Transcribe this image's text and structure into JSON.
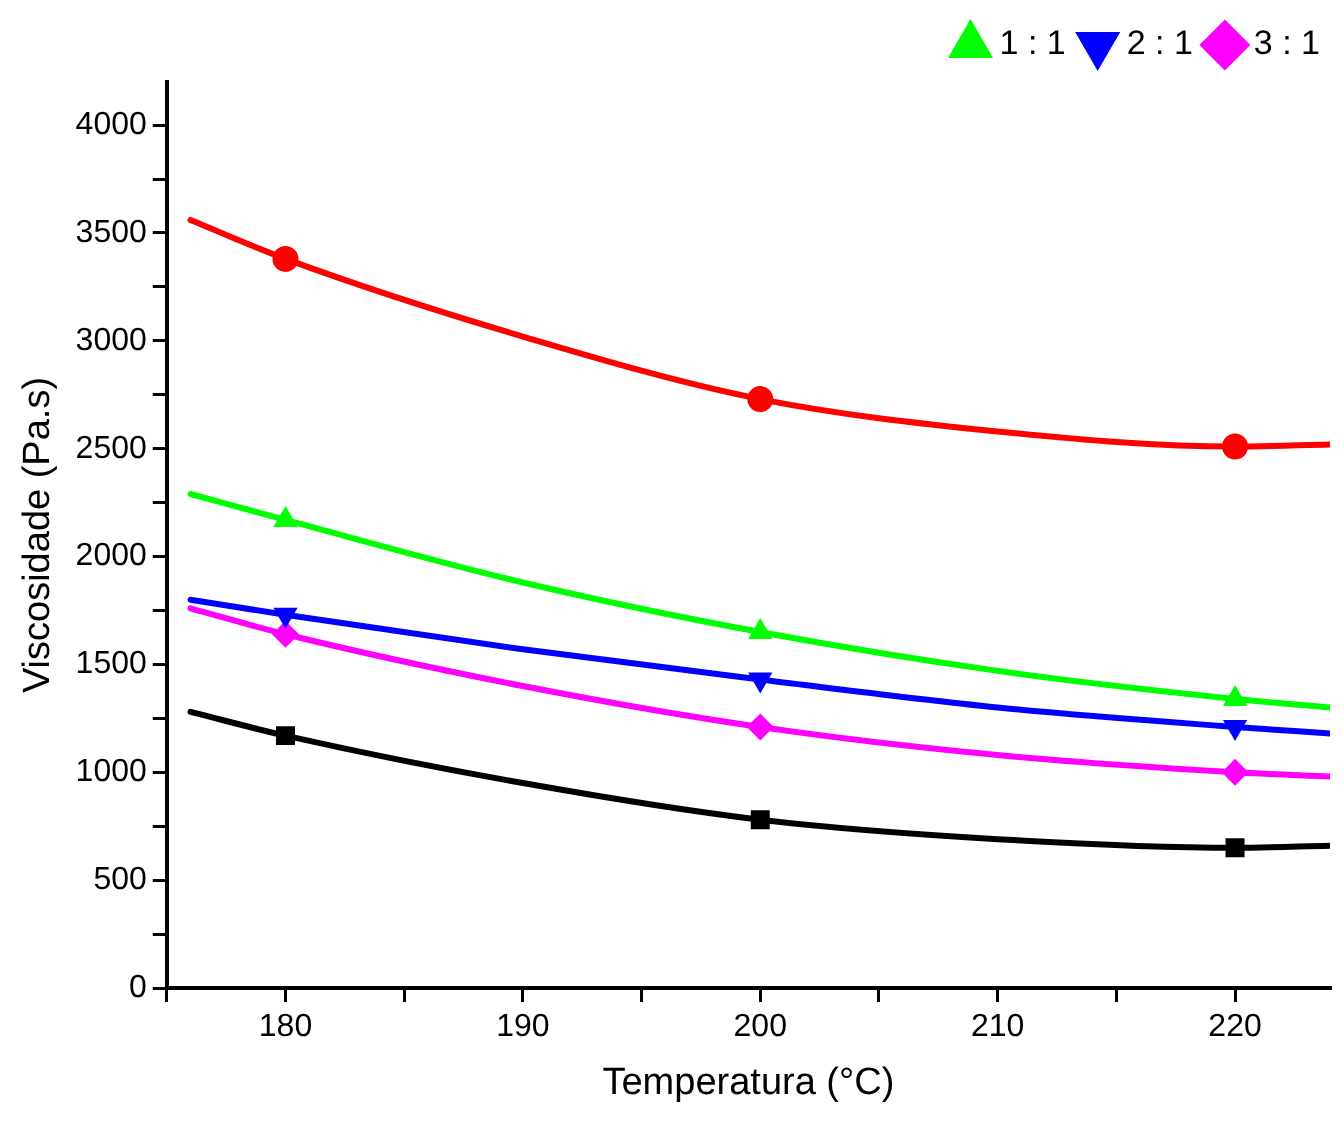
{
  "chart_data": {
    "type": "scatter",
    "xlabel": "Temperatura (°C)",
    "ylabel": "Viscosidade (Pa.s)",
    "legend": "top right",
    "grid": false,
    "xlim": [
      175,
      224
    ],
    "xticks": [
      {
        "value": 175,
        "label": null
      },
      180,
      {
        "value": 185,
        "label": null
      },
      190,
      {
        "value": 195,
        "label": null
      },
      200,
      {
        "value": 205,
        "label": null
      },
      210,
      {
        "value": 215,
        "label": null
      },
      220
    ],
    "ylim": [
      0,
      4200
    ],
    "yticks": [
      0,
      {
        "value": 250,
        "label": null
      },
      500,
      {
        "value": 750,
        "label": null
      },
      1000,
      {
        "value": 1250,
        "label": null
      },
      1500,
      {
        "value": 1750,
        "label": null
      },
      2000,
      {
        "value": 2250,
        "label": null
      },
      2500,
      {
        "value": 2750,
        "label": null
      },
      3000,
      {
        "value": 3250,
        "label": null
      },
      3500,
      {
        "value": 3750,
        "label": null
      },
      4000
    ],
    "series": [
      {
        "type": "scatter",
        "marker": "square",
        "color": "#000000",
        "x": [
          180,
          200,
          220
        ],
        "values": [
          1170,
          780,
          650
        ]
      },
      {
        "type": "scatter",
        "marker": "circle",
        "color": "#ff0000",
        "x": [
          180,
          200,
          220
        ],
        "values": [
          3380,
          2730,
          2510
        ]
      },
      {
        "type": "scatter",
        "marker": "triangle",
        "name": "1 : 1",
        "color": "#00ff00",
        "x": [
          180,
          200,
          220
        ],
        "values": [
          2170,
          1650,
          1340
        ]
      },
      {
        "type": "scatter",
        "marker": "triangle-down",
        "name": "2 : 1",
        "color": "#0000ff",
        "x": [
          180,
          200,
          220
        ],
        "values": [
          1730,
          1430,
          1210
        ]
      },
      {
        "type": "scatter",
        "marker": "diamond",
        "name": "3 : 1",
        "color": "#ff00ff",
        "x": [
          180,
          200,
          220
        ],
        "values": [
          1640,
          1210,
          1000
        ]
      },
      {
        "type": "line",
        "marker": "none",
        "color": "#000000",
        "x": [
          176,
          180,
          190,
          200,
          210,
          220,
          224
        ],
        "values": [
          1280,
          1170,
          950,
          780,
          690,
          650,
          660
        ]
      },
      {
        "type": "line",
        "marker": "none",
        "color": "#ff0000",
        "x": [
          176,
          180,
          190,
          200,
          210,
          220,
          224
        ],
        "values": [
          3560,
          3380,
          3020,
          2730,
          2580,
          2510,
          2520
        ]
      },
      {
        "type": "line",
        "marker": "none",
        "color": "#00ff00",
        "x": [
          176,
          180,
          190,
          200,
          210,
          220,
          224
        ],
        "values": [
          2290,
          2170,
          1880,
          1650,
          1470,
          1340,
          1300
        ]
      },
      {
        "type": "line",
        "marker": "none",
        "color": "#0000ff",
        "x": [
          176,
          180,
          190,
          200,
          210,
          220,
          224
        ],
        "values": [
          1800,
          1730,
          1570,
          1430,
          1300,
          1210,
          1180
        ]
      },
      {
        "type": "line",
        "marker": "none",
        "color": "#ff00ff",
        "x": [
          176,
          180,
          190,
          200,
          210,
          220,
          224
        ],
        "values": [
          1760,
          1640,
          1400,
          1210,
          1080,
          1000,
          980
        ]
      }
    ]
  }
}
